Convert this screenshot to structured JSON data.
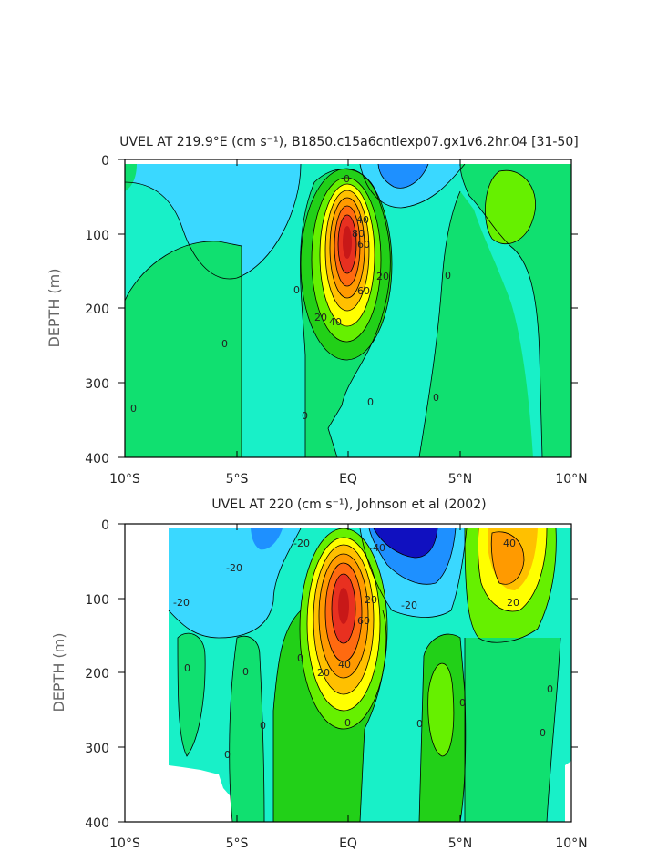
{
  "chart_data": [
    {
      "type": "contour",
      "title": "UVEL AT 219.9°E (cm s⁻¹), B1850.c15a6cntlexp07.gx1v6.2hr.04 [31-50]",
      "ylabel": "DEPTH (m)",
      "x_ticks": [
        "10°S",
        "5°S",
        "EQ",
        "5°N",
        "10°N"
      ],
      "y_ticks": [
        "0",
        "100",
        "200",
        "300",
        "400"
      ],
      "xlim": [
        -10,
        10
      ],
      "ylim": [
        400,
        0
      ],
      "contour_labels": [
        "0",
        "0",
        "0",
        "0",
        "0",
        "0",
        "0",
        "0",
        "20",
        "20",
        "40",
        "40",
        "60",
        "60",
        "80"
      ],
      "core": {
        "lat": -0.2,
        "depth": 130,
        "max_speed": 90
      }
    },
    {
      "type": "contour",
      "title": "UVEL AT 220 (cm s⁻¹), Johnson et al (2002)",
      "ylabel": "DEPTH (m)",
      "x_ticks": [
        "10°S",
        "5°S",
        "EQ",
        "5°N",
        "10°N"
      ],
      "y_ticks": [
        "0",
        "100",
        "200",
        "300",
        "400"
      ],
      "xlim": [
        -10,
        10
      ],
      "ylim": [
        400,
        0
      ],
      "contour_labels": [
        "-20",
        "-20",
        "-20",
        "-40",
        "-20",
        "20",
        "40",
        "60",
        "20",
        "40",
        "20",
        "0",
        "0",
        "0",
        "0",
        "0",
        "0",
        "0",
        "0",
        "0",
        "0"
      ],
      "core": {
        "lat": -0.2,
        "depth": 110,
        "max_speed": 90
      }
    }
  ],
  "palette": {
    "neg_strong": "#1010c0",
    "neg_mid": "#1e90ff",
    "neg_weak": "#3ad8ff",
    "near_zero": "#18f0c8",
    "zero_band": "#10e070",
    "pos_weak": "#22d018",
    "pos_mid": "#66f000",
    "yellow": "#ffff00",
    "orange": "#ff9a00",
    "red": "#e83020",
    "deep_red": "#c81818"
  }
}
